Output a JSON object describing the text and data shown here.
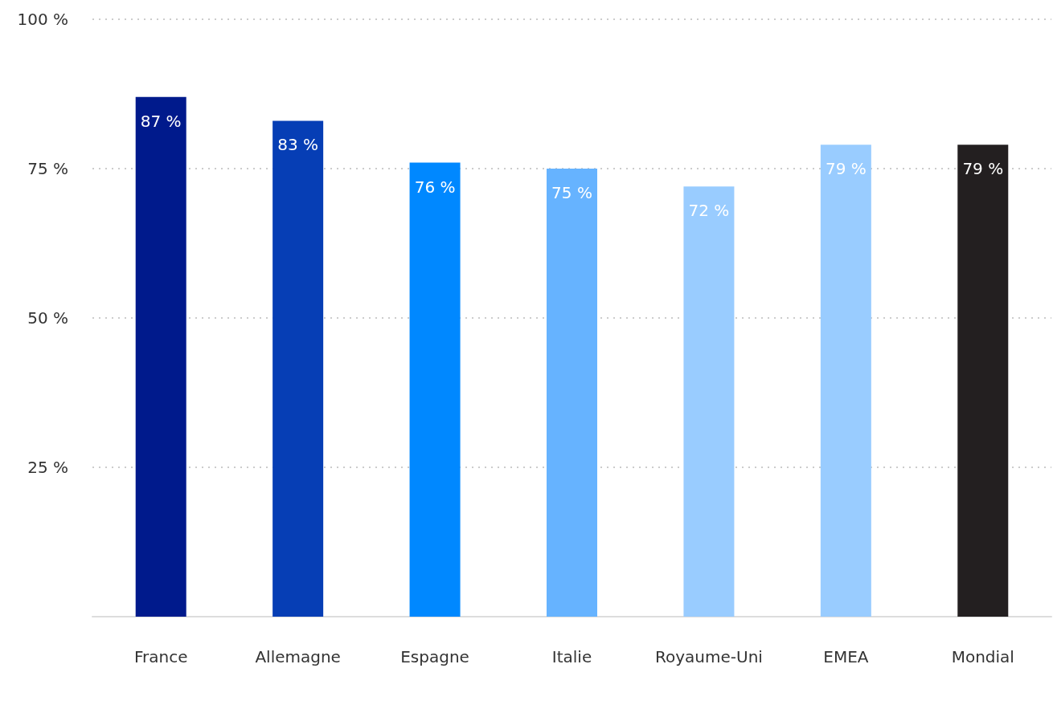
{
  "chart_data": {
    "type": "bar",
    "categories": [
      "France",
      "Allemagne",
      "Espagne",
      "Italie",
      "Royaume-Uni",
      "EMEA",
      "Mondial"
    ],
    "values": [
      87,
      83,
      76,
      75,
      72,
      79,
      79
    ],
    "colors": [
      "#001a8c",
      "#063eb5",
      "#0088ff",
      "#66b3ff",
      "#99ccff",
      "#99ccff",
      "#231f20"
    ],
    "ylim": [
      0,
      100
    ],
    "yticks": [
      {
        "value": 0,
        "label": null
      },
      {
        "value": 25,
        "label": "25 %"
      },
      {
        "value": 50,
        "label": "50 %"
      },
      {
        "value": 75,
        "label": "75 %"
      },
      {
        "value": 100,
        "label": "100 %"
      }
    ],
    "grid": "y",
    "data_labels": true,
    "value_labels": [
      "87 %",
      "83 %",
      "76 %",
      "75 %",
      "72 %",
      "79 %",
      "79 %"
    ]
  }
}
